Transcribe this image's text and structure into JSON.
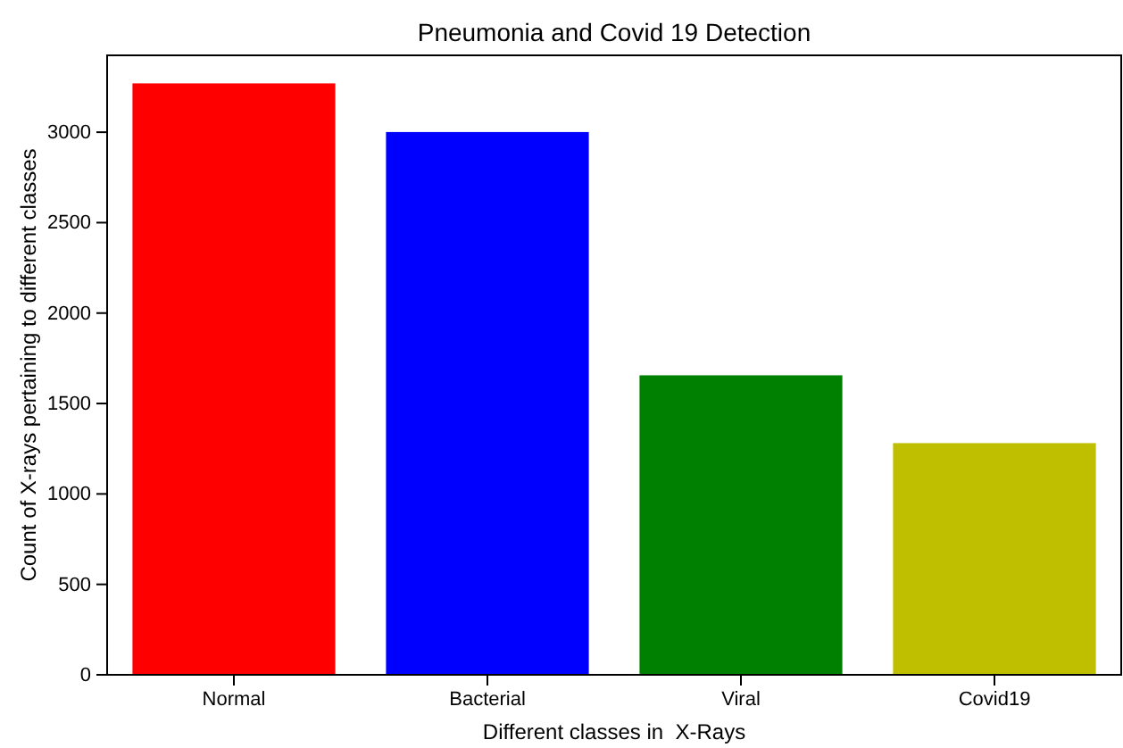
{
  "chart_data": {
    "type": "bar",
    "title": "Pneumonia and Covid 19 Detection",
    "xlabel": "Different classes in  X-Rays",
    "ylabel": "Count of X-rays pertaining to different classes",
    "categories": [
      "Normal",
      "Bacterial",
      "Viral",
      "Covid19"
    ],
    "values": [
      3270,
      3001,
      1656,
      1281
    ],
    "colors": [
      "#ff0000",
      "#0000ff",
      "#008000",
      "#bfbf00"
    ],
    "ylim": [
      0,
      3425
    ],
    "yticks": [
      0,
      500,
      1000,
      1500,
      2000,
      2500,
      3000
    ],
    "grid": false
  }
}
